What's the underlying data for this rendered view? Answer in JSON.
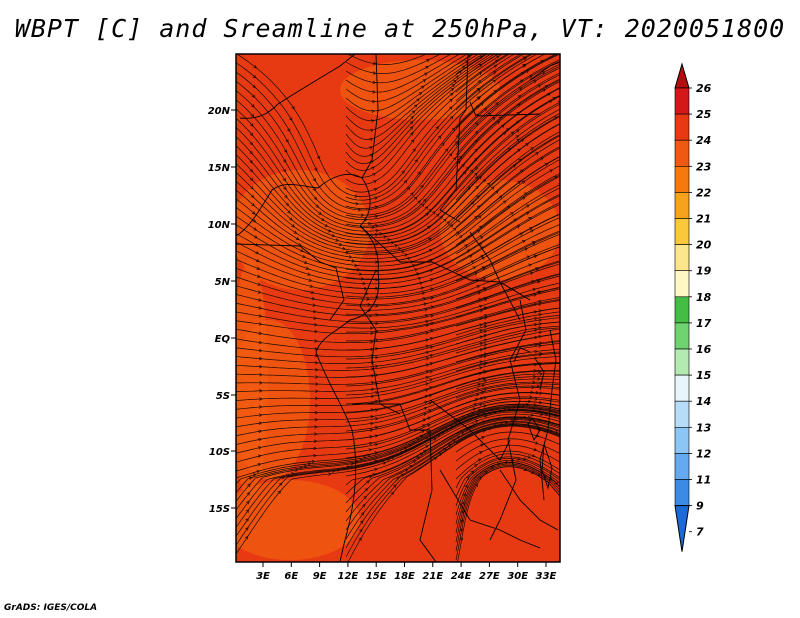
{
  "title": "WBPT [C] and Sreamline at 250hPa, VT: 2020051800",
  "credit": "GrADS: IGES/COLA",
  "map": {
    "lat_labels": [
      "20N",
      "15N",
      "10N",
      "5N",
      "EQ",
      "5S",
      "10S",
      "15S"
    ],
    "lon_labels": [
      "3E",
      "6E",
      "9E",
      "12E",
      "15E",
      "18E",
      "21E",
      "24E",
      "27E",
      "30E",
      "33E"
    ],
    "field_color": "#e83a12",
    "warm_patch_color": "#f25c10",
    "streamline_color": "#1a0a05"
  },
  "colorbar": {
    "labels": [
      "26",
      "25",
      "24",
      "23",
      "22",
      "21",
      "20",
      "19",
      "18",
      "17",
      "16",
      "15",
      "14",
      "13",
      "12",
      "11",
      "9",
      "7"
    ],
    "colors": [
      "#b40d0d",
      "#d21818",
      "#e83a12",
      "#ee5a12",
      "#f47a10",
      "#f7a21c",
      "#fbc83c",
      "#fce68c",
      "#fff8c4",
      "#44bd44",
      "#6fd36f",
      "#b2eab2",
      "#e8f6fc",
      "#b6dcf7",
      "#8cc6f4",
      "#64aaf0",
      "#3a8ae6",
      "#1c6ad9"
    ]
  }
}
